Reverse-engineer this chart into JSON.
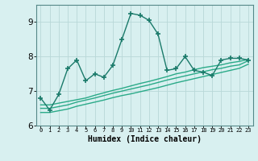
{
  "xlabel": "Humidex (Indice chaleur)",
  "x": [
    0,
    1,
    2,
    3,
    4,
    5,
    6,
    7,
    8,
    9,
    10,
    11,
    12,
    13,
    14,
    15,
    16,
    17,
    18,
    19,
    20,
    21,
    22,
    23
  ],
  "y_main": [
    6.8,
    6.45,
    6.9,
    7.65,
    7.9,
    7.3,
    7.5,
    7.4,
    7.75,
    8.5,
    9.25,
    9.2,
    9.05,
    8.65,
    7.6,
    7.65,
    8.0,
    7.6,
    7.55,
    7.45,
    7.9,
    7.95,
    7.95,
    7.9
  ],
  "y_line1": [
    6.6,
    6.6,
    6.65,
    6.7,
    6.75,
    6.8,
    6.88,
    6.95,
    7.02,
    7.08,
    7.15,
    7.22,
    7.28,
    7.35,
    7.42,
    7.5,
    7.55,
    7.62,
    7.68,
    7.72,
    7.76,
    7.82,
    7.86,
    7.92
  ],
  "y_line2": [
    6.5,
    6.5,
    6.55,
    6.6,
    6.68,
    6.74,
    6.8,
    6.87,
    6.94,
    7.0,
    7.06,
    7.12,
    7.18,
    7.25,
    7.32,
    7.38,
    7.44,
    7.5,
    7.56,
    7.62,
    7.66,
    7.72,
    7.76,
    7.88
  ],
  "y_line3": [
    6.38,
    6.38,
    6.43,
    6.48,
    6.56,
    6.62,
    6.68,
    6.74,
    6.81,
    6.87,
    6.92,
    6.98,
    7.04,
    7.1,
    7.17,
    7.24,
    7.3,
    7.36,
    7.42,
    7.48,
    7.54,
    7.6,
    7.66,
    7.78
  ],
  "color_main": "#1a7a6a",
  "color_lines": "#2aaa88",
  "bg_color": "#d8f0f0",
  "grid_color": "#b8d8d8",
  "ylim": [
    6.0,
    9.5
  ],
  "yticks": [
    6,
    7,
    8,
    9
  ],
  "xlim": [
    -0.5,
    23.5
  ],
  "marker": "+",
  "markersize": 5,
  "linewidth": 1.0,
  "label_fontsize": 7
}
